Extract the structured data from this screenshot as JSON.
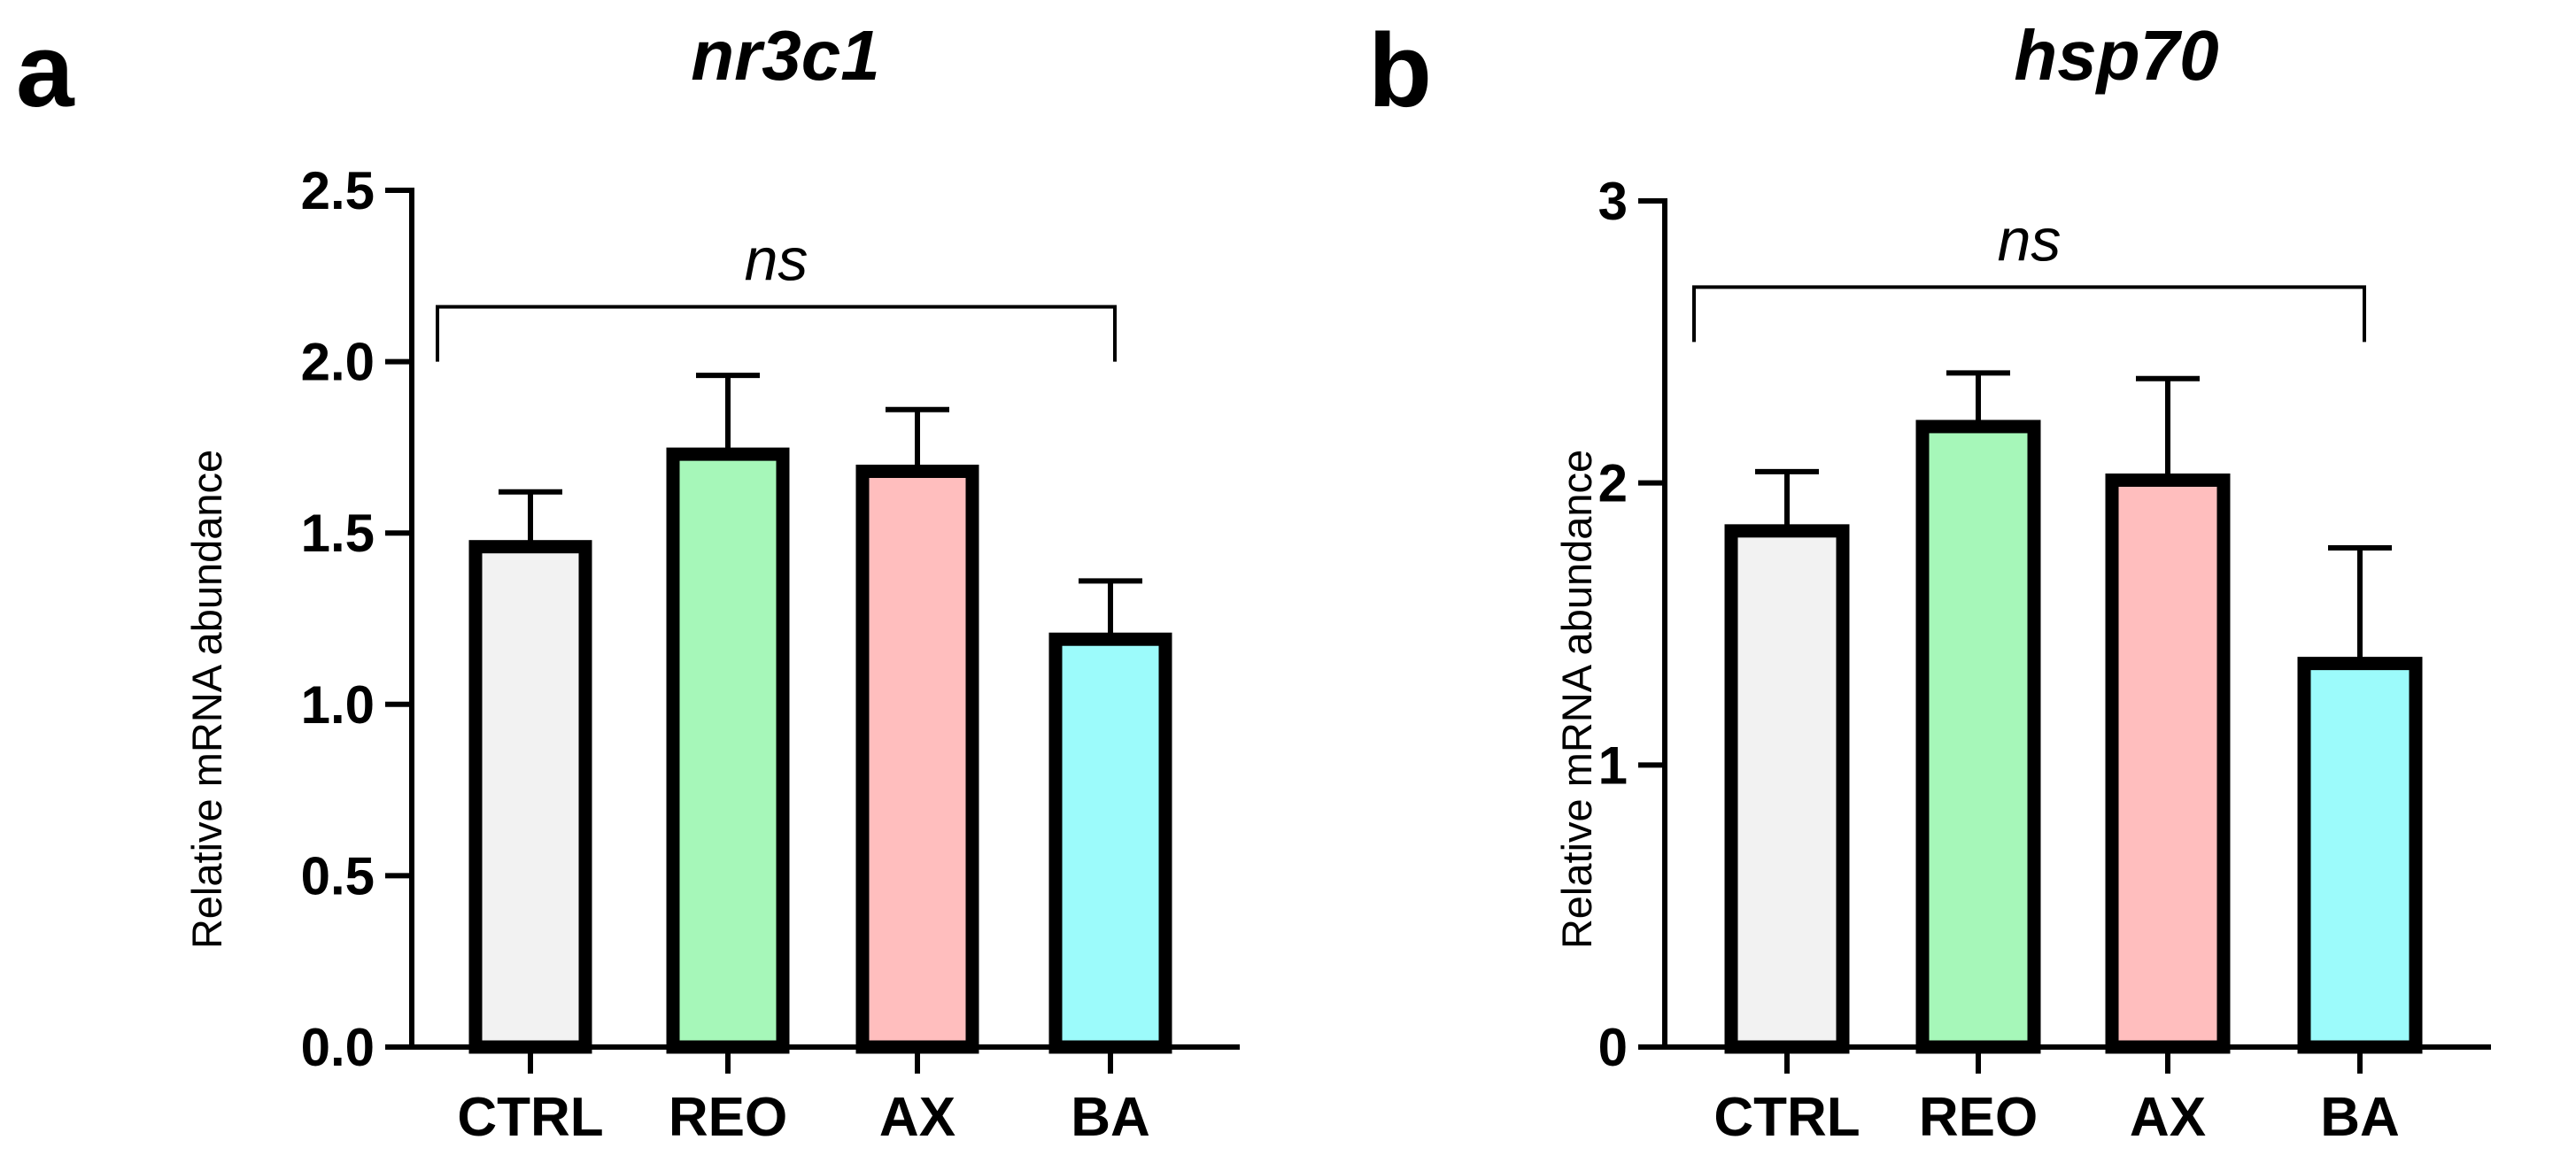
{
  "chart_data": [
    {
      "panel_label": "a",
      "type": "bar",
      "title": "nr3c1",
      "ylabel": "Relative mRNA abundance",
      "xlabel": "",
      "categories": [
        "CTRL",
        "REO",
        "AX",
        "BA"
      ],
      "values": [
        1.46,
        1.73,
        1.68,
        1.19
      ],
      "errors": [
        0.16,
        0.23,
        0.18,
        0.17
      ],
      "colors": [
        "#f2f2f2",
        "#a6f7b9",
        "#ffbebe",
        "#9cfbfb"
      ],
      "ylim": [
        0,
        2.5
      ],
      "yticks": [
        0.0,
        0.5,
        1.0,
        1.5,
        2.0,
        2.5
      ],
      "ytick_labels": [
        "0.0",
        "0.5",
        "1.0",
        "1.5",
        "2.0",
        "2.5"
      ],
      "annotation": "ns",
      "bracket_y": 2.0,
      "grid": false,
      "legend": "none"
    },
    {
      "panel_label": "b",
      "type": "bar",
      "title": "hsp70",
      "ylabel": "Relative mRNA abundance",
      "xlabel": "",
      "categories": [
        "CTRL",
        "REO",
        "AX",
        "BA"
      ],
      "values": [
        1.83,
        2.2,
        2.01,
        1.36
      ],
      "errors": [
        0.21,
        0.19,
        0.36,
        0.41
      ],
      "colors": [
        "#f2f2f2",
        "#a6f7b9",
        "#ffbebe",
        "#9cfbfb"
      ],
      "ylim": [
        0,
        3
      ],
      "yticks": [
        0,
        1,
        2,
        3
      ],
      "ytick_labels": [
        "0",
        "1",
        "2",
        "3"
      ],
      "annotation": "ns",
      "bracket_y": 2.5,
      "grid": false,
      "legend": "none"
    }
  ]
}
